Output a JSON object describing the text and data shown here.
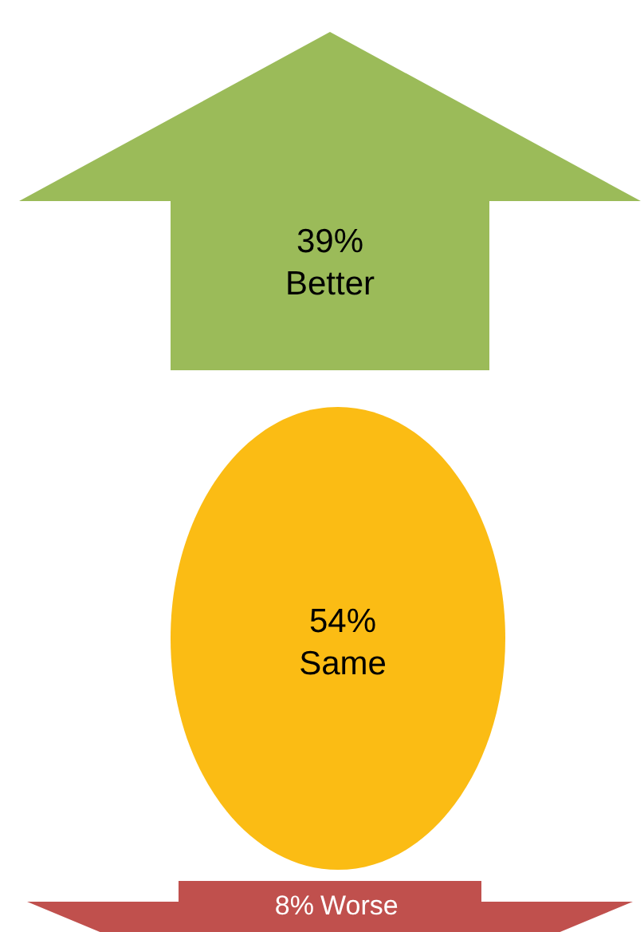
{
  "chart_data": {
    "type": "other",
    "categories": [
      "Better",
      "Same",
      "Worse"
    ],
    "values": [
      39,
      54,
      8
    ],
    "value_labels": [
      "39%",
      "54%",
      "8%"
    ],
    "colors": [
      "#9bbb59",
      "#fbbc14",
      "#c0504d"
    ]
  }
}
